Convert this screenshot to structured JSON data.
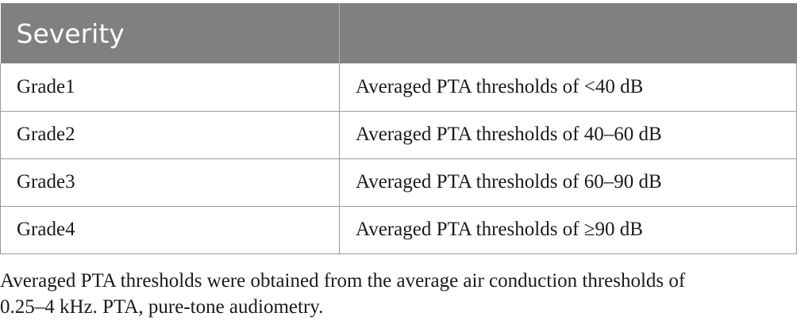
{
  "table": {
    "headers": [
      "Severity",
      ""
    ],
    "rows": [
      {
        "grade": "Grade1",
        "description": "Averaged PTA thresholds of <40 dB"
      },
      {
        "grade": "Grade2",
        "description": "Averaged PTA thresholds of 40–60 dB"
      },
      {
        "grade": "Grade3",
        "description": "Averaged PTA thresholds of 60–90 dB"
      },
      {
        "grade": "Grade4",
        "description": "Averaged PTA thresholds of ≥90 dB"
      }
    ]
  },
  "footnote": {
    "line1": "Averaged PTA thresholds were obtained from the average air conduction thresholds of",
    "line2": "0.25–4 kHz. PTA, pure-tone audiometry."
  },
  "colors": {
    "header_background": "#808080",
    "header_text": "#ffffff",
    "border": "#9a9a9a"
  }
}
